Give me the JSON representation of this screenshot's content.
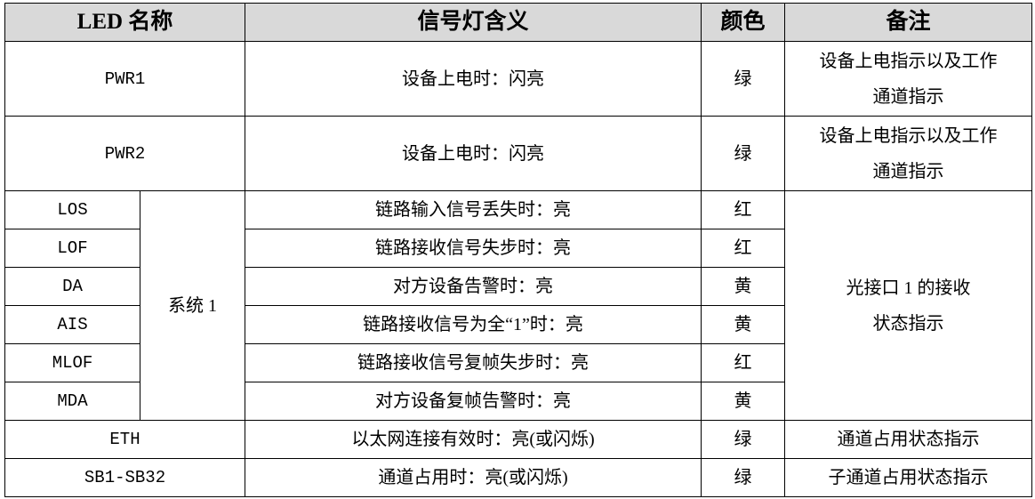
{
  "header": {
    "name": "LED 名称",
    "meaning": "信号灯含义",
    "color": "颜色",
    "note": "备注"
  },
  "header_bg": "#d9d9d9",
  "rows": {
    "pwr1": {
      "name": "PWR1",
      "meaning": "设备上电时：闪亮",
      "color": "绿",
      "note_line1": "设备上电指示以及工作",
      "note_line2": "通道指示"
    },
    "pwr2": {
      "name": "PWR2",
      "meaning": "设备上电时：闪亮",
      "color": "绿",
      "note_line1": "设备上电指示以及工作",
      "note_line2": "通道指示"
    },
    "group_label": "系统 1",
    "group_note_line1": "光接口 1 的接收",
    "group_note_line2": "状态指示",
    "group": [
      {
        "name": "LOS",
        "meaning": "链路输入信号丢失时：亮",
        "color": "红"
      },
      {
        "name": "LOF",
        "meaning": "链路接收信号失步时：亮",
        "color": "红"
      },
      {
        "name": "DA",
        "meaning": "对方设备告警时：亮",
        "color": "黄"
      },
      {
        "name": "AIS",
        "meaning": "链路接收信号为全“1”时：亮",
        "color": "黄"
      },
      {
        "name": "MLOF",
        "meaning": "链路接收信号复帧失步时：亮",
        "color": "红"
      },
      {
        "name": "MDA",
        "meaning": "对方设备复帧告警时：亮",
        "color": "黄"
      }
    ],
    "eth": {
      "name": "ETH",
      "meaning": "以太网连接有效时：亮(或闪烁)",
      "color": "绿",
      "note": "通道占用状态指示"
    },
    "sb": {
      "name": "SB1-SB32",
      "meaning": "通道占用时：亮(或闪烁)",
      "color": "绿",
      "note": "子通道占用状态指示"
    }
  }
}
